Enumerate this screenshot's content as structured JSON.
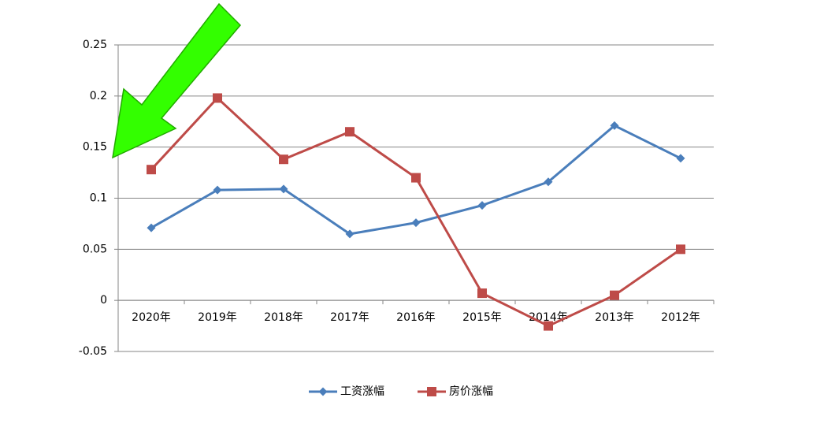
{
  "chart_data": {
    "type": "line",
    "categories": [
      "2020年",
      "2019年",
      "2018年",
      "2017年",
      "2016年",
      "2015年",
      "2014年",
      "2013年",
      "2012年"
    ],
    "series": [
      {
        "name": "工资涨幅",
        "color": "#4a7ebb",
        "marker": "diamond",
        "values": [
          0.071,
          0.108,
          0.109,
          0.065,
          0.076,
          0.093,
          0.116,
          0.171,
          0.139
        ]
      },
      {
        "name": "房价涨幅",
        "color": "#be4b48",
        "marker": "square",
        "values": [
          0.128,
          0.198,
          0.138,
          0.165,
          0.12,
          0.007,
          -0.025,
          0.005,
          0.05
        ]
      }
    ],
    "ylim": [
      -0.05,
      0.25
    ],
    "yticks": [
      -0.05,
      0,
      0.05,
      0.1,
      0.15,
      0.2,
      0.25
    ],
    "grid": true,
    "legend": "bottom"
  }
}
